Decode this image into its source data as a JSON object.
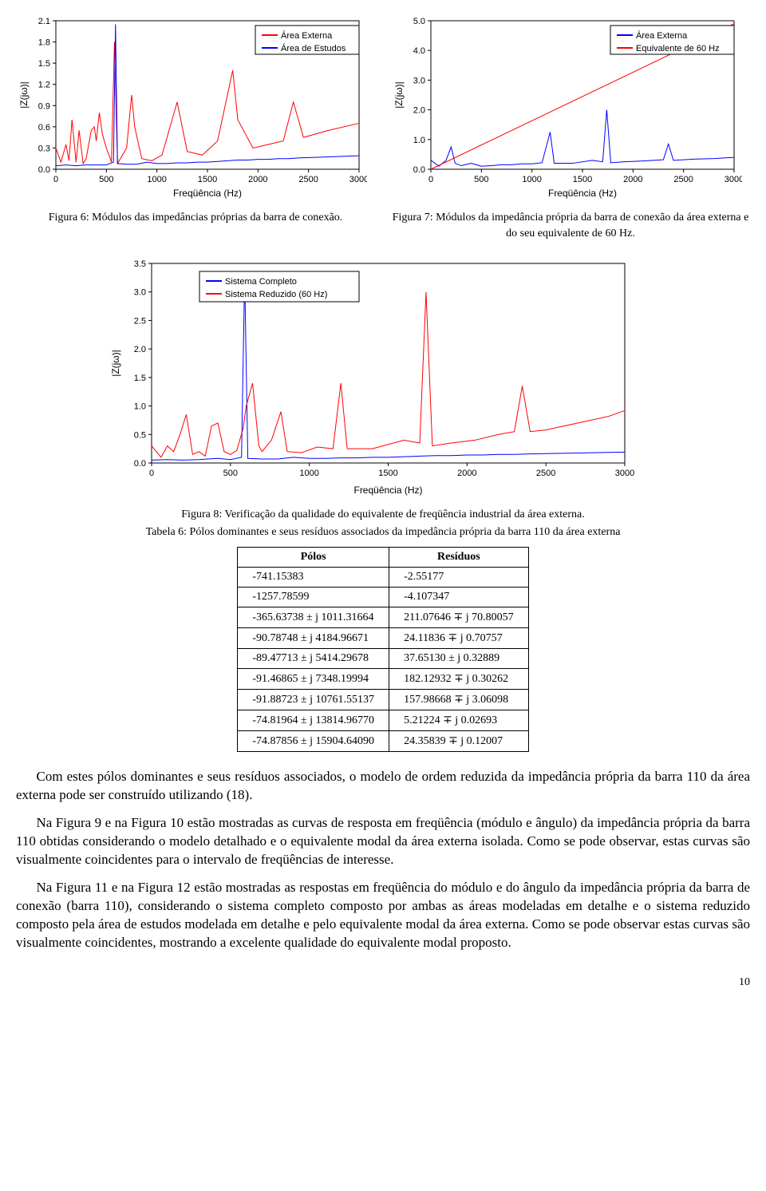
{
  "fig6": {
    "type": "line",
    "caption": "Figura 6: Módulos das impedâncias próprias da barra de conexão.",
    "xlabel": "Freqüência (Hz)",
    "ylabel": "|Z(jω)|",
    "xlim": [
      0,
      3000
    ],
    "xtick_step": 500,
    "ylim": [
      0.0,
      2.1
    ],
    "yticks": [
      0.0,
      0.3,
      0.6,
      0.9,
      1.2,
      1.5,
      1.8,
      2.1
    ],
    "legend_pos": "top-right",
    "legend": [
      {
        "label": "Área Externa",
        "color": "#ff0000"
      },
      {
        "label": "Área de Estudos",
        "color": "#0000ff"
      }
    ],
    "background_color": "#ffffff",
    "axis_color": "#000000",
    "line_width": 1,
    "series_red": [
      [
        0,
        0.3
      ],
      [
        50,
        0.1
      ],
      [
        100,
        0.35
      ],
      [
        130,
        0.12
      ],
      [
        160,
        0.7
      ],
      [
        200,
        0.1
      ],
      [
        230,
        0.55
      ],
      [
        270,
        0.08
      ],
      [
        300,
        0.15
      ],
      [
        350,
        0.55
      ],
      [
        380,
        0.6
      ],
      [
        400,
        0.4
      ],
      [
        430,
        0.8
      ],
      [
        460,
        0.5
      ],
      [
        500,
        0.3
      ],
      [
        550,
        0.1
      ],
      [
        580,
        1.8
      ],
      [
        610,
        0.08
      ],
      [
        700,
        0.3
      ],
      [
        750,
        1.05
      ],
      [
        780,
        0.6
      ],
      [
        850,
        0.15
      ],
      [
        950,
        0.12
      ],
      [
        1050,
        0.2
      ],
      [
        1200,
        0.95
      ],
      [
        1300,
        0.25
      ],
      [
        1450,
        0.2
      ],
      [
        1600,
        0.4
      ],
      [
        1750,
        1.4
      ],
      [
        1800,
        0.7
      ],
      [
        1950,
        0.3
      ],
      [
        2100,
        0.35
      ],
      [
        2250,
        0.4
      ],
      [
        2350,
        0.95
      ],
      [
        2450,
        0.45
      ],
      [
        2700,
        0.55
      ],
      [
        3000,
        0.65
      ]
    ],
    "series_blue": [
      [
        0,
        0.05
      ],
      [
        100,
        0.06
      ],
      [
        200,
        0.05
      ],
      [
        300,
        0.06
      ],
      [
        400,
        0.06
      ],
      [
        500,
        0.06
      ],
      [
        570,
        0.1
      ],
      [
        590,
        2.05
      ],
      [
        610,
        0.08
      ],
      [
        700,
        0.07
      ],
      [
        800,
        0.07
      ],
      [
        900,
        0.1
      ],
      [
        1000,
        0.08
      ],
      [
        1100,
        0.08
      ],
      [
        1200,
        0.09
      ],
      [
        1300,
        0.09
      ],
      [
        1400,
        0.1
      ],
      [
        1500,
        0.1
      ],
      [
        1600,
        0.11
      ],
      [
        1700,
        0.12
      ],
      [
        1800,
        0.13
      ],
      [
        1900,
        0.13
      ],
      [
        2000,
        0.14
      ],
      [
        2100,
        0.14
      ],
      [
        2200,
        0.15
      ],
      [
        2300,
        0.15
      ],
      [
        2400,
        0.16
      ],
      [
        2600,
        0.17
      ],
      [
        2800,
        0.18
      ],
      [
        3000,
        0.19
      ]
    ],
    "label_fontsize": 12,
    "tick_fontsize": 11,
    "legend_fontsize": 11
  },
  "fig7": {
    "type": "line",
    "caption": "Figura 7: Módulos da impedância própria da barra de conexão da área externa e do seu equivalente de 60 Hz.",
    "xlabel": "Freqüência (Hz)",
    "ylabel": "|Z(jω)|",
    "xlim": [
      0,
      3000
    ],
    "xtick_step": 500,
    "ylim": [
      0.0,
      5.0
    ],
    "ytick_step": 1.0,
    "legend_pos": "top-right",
    "legend": [
      {
        "label": "Área Externa",
        "color": "#0000ff"
      },
      {
        "label": "Equivalente de 60 Hz",
        "color": "#ff0000"
      }
    ],
    "background_color": "#ffffff",
    "axis_color": "#000000",
    "line_width": 1,
    "series_blue": [
      [
        0,
        0.3
      ],
      [
        80,
        0.1
      ],
      [
        150,
        0.3
      ],
      [
        200,
        0.75
      ],
      [
        240,
        0.2
      ],
      [
        300,
        0.12
      ],
      [
        400,
        0.2
      ],
      [
        500,
        0.1
      ],
      [
        600,
        0.12
      ],
      [
        700,
        0.15
      ],
      [
        800,
        0.15
      ],
      [
        900,
        0.18
      ],
      [
        1000,
        0.18
      ],
      [
        1100,
        0.22
      ],
      [
        1180,
        1.25
      ],
      [
        1220,
        0.2
      ],
      [
        1400,
        0.2
      ],
      [
        1600,
        0.3
      ],
      [
        1700,
        0.25
      ],
      [
        1740,
        2.0
      ],
      [
        1780,
        0.22
      ],
      [
        1900,
        0.25
      ],
      [
        2100,
        0.28
      ],
      [
        2300,
        0.32
      ],
      [
        2350,
        0.85
      ],
      [
        2400,
        0.3
      ],
      [
        2600,
        0.34
      ],
      [
        2800,
        0.36
      ],
      [
        3000,
        0.4
      ]
    ],
    "series_red": [
      [
        0,
        0.0
      ],
      [
        3000,
        4.9
      ]
    ],
    "label_fontsize": 12,
    "tick_fontsize": 11,
    "legend_fontsize": 11
  },
  "fig8": {
    "type": "line",
    "caption": "Figura 8: Verificação da qualidade do equivalente de freqüência industrial da área externa.",
    "xlabel": "Freqüência (Hz)",
    "ylabel": "|Z(jω)|",
    "xlim": [
      0,
      3000
    ],
    "xtick_step": 500,
    "ylim": [
      0.0,
      3.5
    ],
    "ytick_step": 0.5,
    "legend_pos": "top-left-inset",
    "legend": [
      {
        "label": "Sistema Completo",
        "color": "#0000ff"
      },
      {
        "label": "Sistema Reduzido (60 Hz)",
        "color": "#ff0000"
      }
    ],
    "background_color": "#ffffff",
    "axis_color": "#000000",
    "line_width": 1,
    "series_blue": [
      [
        0,
        0.05
      ],
      [
        100,
        0.06
      ],
      [
        200,
        0.05
      ],
      [
        300,
        0.06
      ],
      [
        420,
        0.08
      ],
      [
        500,
        0.06
      ],
      [
        570,
        0.1
      ],
      [
        590,
        3.3
      ],
      [
        610,
        0.08
      ],
      [
        700,
        0.07
      ],
      [
        800,
        0.07
      ],
      [
        900,
        0.1
      ],
      [
        1000,
        0.08
      ],
      [
        1100,
        0.08
      ],
      [
        1200,
        0.09
      ],
      [
        1300,
        0.09
      ],
      [
        1400,
        0.1
      ],
      [
        1500,
        0.1
      ],
      [
        1600,
        0.11
      ],
      [
        1700,
        0.12
      ],
      [
        1800,
        0.13
      ],
      [
        1900,
        0.13
      ],
      [
        2000,
        0.14
      ],
      [
        2100,
        0.14
      ],
      [
        2200,
        0.15
      ],
      [
        2300,
        0.15
      ],
      [
        2400,
        0.16
      ],
      [
        2600,
        0.17
      ],
      [
        2800,
        0.18
      ],
      [
        3000,
        0.19
      ]
    ],
    "series_red": [
      [
        0,
        0.3
      ],
      [
        60,
        0.1
      ],
      [
        100,
        0.3
      ],
      [
        140,
        0.2
      ],
      [
        180,
        0.5
      ],
      [
        220,
        0.85
      ],
      [
        260,
        0.15
      ],
      [
        300,
        0.2
      ],
      [
        340,
        0.12
      ],
      [
        380,
        0.65
      ],
      [
        420,
        0.7
      ],
      [
        460,
        0.2
      ],
      [
        500,
        0.15
      ],
      [
        540,
        0.22
      ],
      [
        580,
        0.6
      ],
      [
        600,
        1.0
      ],
      [
        640,
        1.4
      ],
      [
        680,
        0.3
      ],
      [
        700,
        0.2
      ],
      [
        760,
        0.4
      ],
      [
        820,
        0.9
      ],
      [
        860,
        0.2
      ],
      [
        950,
        0.18
      ],
      [
        1050,
        0.28
      ],
      [
        1150,
        0.25
      ],
      [
        1200,
        1.4
      ],
      [
        1240,
        0.25
      ],
      [
        1400,
        0.25
      ],
      [
        1600,
        0.4
      ],
      [
        1700,
        0.35
      ],
      [
        1740,
        3.0
      ],
      [
        1780,
        0.3
      ],
      [
        1900,
        0.35
      ],
      [
        2050,
        0.4
      ],
      [
        2200,
        0.5
      ],
      [
        2300,
        0.55
      ],
      [
        2350,
        1.35
      ],
      [
        2400,
        0.55
      ],
      [
        2500,
        0.58
      ],
      [
        2700,
        0.7
      ],
      [
        2900,
        0.82
      ],
      [
        3000,
        0.92
      ]
    ],
    "label_fontsize": 12,
    "tick_fontsize": 11,
    "legend_fontsize": 11
  },
  "table6": {
    "caption": "Tabela 6: Pólos dominantes e seus resíduos associados da impedância própria da barra 110 da área externa",
    "columns": [
      "Pólos",
      "Resíduos"
    ],
    "rows": [
      [
        "-741.15383",
        "-2.55177"
      ],
      [
        "-1257.78599",
        "-4.107347"
      ],
      [
        "-365.63738 ± j 1011.31664",
        "211.07646 ∓ j 70.80057"
      ],
      [
        "-90.78748 ± j 4184.96671",
        "24.11836 ∓ j 0.70757"
      ],
      [
        "-89.47713 ± j 5414.29678",
        "37.65130 ± j 0.32889"
      ],
      [
        "-91.46865 ± j 7348.19994",
        "182.12932 ∓ j 0.30262"
      ],
      [
        "-91.88723 ± j 10761.55137",
        "157.98668 ∓ j 3.06098"
      ],
      [
        "-74.81964 ± j 13814.96770",
        "5.21224 ∓ j 0.02693"
      ],
      [
        "-74.87856 ± j 15904.64090",
        "24.35839 ∓ j 0.12007"
      ]
    ],
    "border_color": "#000000",
    "header_align": "center",
    "cell_align": "left",
    "font_size": 14
  },
  "paragraphs": [
    "Com estes pólos dominantes e seus resíduos associados, o modelo de ordem reduzida da impedância própria da barra 110 da área externa pode ser construído utilizando (18).",
    "Na Figura 9 e na Figura 10 estão mostradas as curvas de resposta em freqüência (módulo e ângulo) da impedância própria da barra 110 obtidas considerando o modelo detalhado e o equivalente modal da área externa isolada. Como se pode observar, estas curvas são visualmente coincidentes para o intervalo de freqüências de interesse.",
    "Na Figura 11 e na Figura 12 estão mostradas as respostas em freqüência do módulo e do ângulo da impedância própria da barra de conexão (barra 110), considerando o sistema completo composto por ambas as áreas modeladas em detalhe e o sistema reduzido composto pela área de estudos modelada em detalhe e pelo equivalente modal da área externa. Como se pode observar estas curvas são visualmente coincidentes, mostrando a excelente qualidade do equivalente modal proposto."
  ],
  "page_number": "10"
}
